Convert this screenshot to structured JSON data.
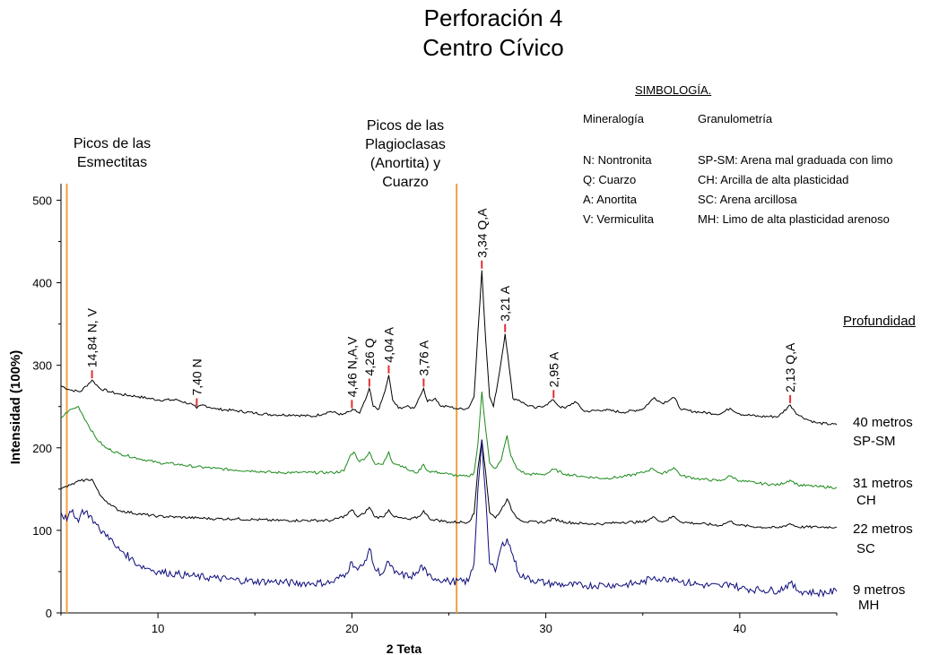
{
  "title_lines": [
    "Perforación 4",
    "Centro Cívico"
  ],
  "chart_data": {
    "type": "line",
    "title": "Perforación 4 Centro Cívico",
    "xlabel": "2 Teta",
    "ylabel": "Intensidad (100%)",
    "xlim": [
      5,
      45
    ],
    "ylim": [
      0,
      520
    ],
    "xticks": [
      10,
      20,
      30,
      40
    ],
    "yticks": [
      0,
      100,
      200,
      300,
      400,
      500
    ],
    "grid": false,
    "series": [
      {
        "name": "40 metros",
        "color": "#000000",
        "points": [
          [
            5,
            275
          ],
          [
            5.5,
            270
          ],
          [
            6,
            268
          ],
          [
            6.6,
            282
          ],
          [
            7,
            272
          ],
          [
            7.5,
            268
          ],
          [
            8,
            265
          ],
          [
            9,
            262
          ],
          [
            10,
            258
          ],
          [
            11,
            258
          ],
          [
            11.8,
            252
          ],
          [
            12,
            248
          ],
          [
            12.3,
            252
          ],
          [
            13,
            247
          ],
          [
            14,
            245
          ],
          [
            15,
            242
          ],
          [
            16,
            240
          ],
          [
            17,
            240
          ],
          [
            18,
            238
          ],
          [
            18.9,
            244
          ],
          [
            19.5,
            240
          ],
          [
            19.9,
            244
          ],
          [
            20.1,
            246
          ],
          [
            20.4,
            242
          ],
          [
            20.7,
            258
          ],
          [
            20.9,
            272
          ],
          [
            21.1,
            250
          ],
          [
            21.4,
            247
          ],
          [
            21.7,
            268
          ],
          [
            21.9,
            288
          ],
          [
            22.1,
            258
          ],
          [
            22.4,
            248
          ],
          [
            22.8,
            250
          ],
          [
            23.2,
            248
          ],
          [
            23.5,
            262
          ],
          [
            23.7,
            272
          ],
          [
            23.9,
            256
          ],
          [
            24.3,
            260
          ],
          [
            24.6,
            250
          ],
          [
            25,
            250
          ],
          [
            25.5,
            247
          ],
          [
            26,
            248
          ],
          [
            26.3,
            262
          ],
          [
            26.5,
            340
          ],
          [
            26.7,
            415
          ],
          [
            26.9,
            330
          ],
          [
            27.1,
            262
          ],
          [
            27.3,
            250
          ],
          [
            27.6,
            290
          ],
          [
            27.9,
            338
          ],
          [
            28.1,
            300
          ],
          [
            28.3,
            260
          ],
          [
            28.6,
            258
          ],
          [
            29,
            252
          ],
          [
            29.5,
            248
          ],
          [
            30,
            252
          ],
          [
            30.4,
            258
          ],
          [
            30.7,
            250
          ],
          [
            31,
            248
          ],
          [
            31.5,
            256
          ],
          [
            32,
            244
          ],
          [
            33,
            246
          ],
          [
            34,
            243
          ],
          [
            35,
            247
          ],
          [
            35.6,
            261
          ],
          [
            36,
            254
          ],
          [
            36.6,
            261
          ],
          [
            37,
            246
          ],
          [
            38,
            243
          ],
          [
            39,
            241
          ],
          [
            39.5,
            248
          ],
          [
            40,
            241
          ],
          [
            41,
            238
          ],
          [
            42,
            238
          ],
          [
            42.6,
            252
          ],
          [
            43,
            240
          ],
          [
            43.5,
            234
          ],
          [
            44,
            230
          ],
          [
            45,
            228
          ]
        ]
      },
      {
        "name": "31 metros",
        "color": "#1a8a1a",
        "points": [
          [
            5,
            236
          ],
          [
            5.4,
            245
          ],
          [
            5.9,
            250
          ],
          [
            6.3,
            232
          ],
          [
            6.8,
            212
          ],
          [
            7.3,
            200
          ],
          [
            8,
            193
          ],
          [
            9,
            187
          ],
          [
            10,
            182
          ],
          [
            11,
            180
          ],
          [
            12,
            177
          ],
          [
            13,
            175
          ],
          [
            14,
            173
          ],
          [
            15,
            172
          ],
          [
            16,
            170
          ],
          [
            17,
            170
          ],
          [
            18,
            170
          ],
          [
            19,
            170
          ],
          [
            19.6,
            172
          ],
          [
            19.9,
            190
          ],
          [
            20.1,
            195
          ],
          [
            20.4,
            183
          ],
          [
            20.7,
            188
          ],
          [
            20.9,
            195
          ],
          [
            21.2,
            180
          ],
          [
            21.6,
            180
          ],
          [
            21.9,
            195
          ],
          [
            22.1,
            182
          ],
          [
            22.6,
            178
          ],
          [
            23,
            172
          ],
          [
            23.4,
            170
          ],
          [
            23.7,
            180
          ],
          [
            23.9,
            172
          ],
          [
            24.5,
            170
          ],
          [
            25,
            168
          ],
          [
            25.5,
            166
          ],
          [
            26,
            165
          ],
          [
            26.3,
            170
          ],
          [
            26.5,
            205
          ],
          [
            26.7,
            268
          ],
          [
            26.9,
            222
          ],
          [
            27.1,
            182
          ],
          [
            27.4,
            175
          ],
          [
            27.7,
            185
          ],
          [
            28,
            215
          ],
          [
            28.2,
            190
          ],
          [
            28.5,
            175
          ],
          [
            29,
            168
          ],
          [
            30,
            168
          ],
          [
            30.4,
            174
          ],
          [
            31,
            168
          ],
          [
            32,
            165
          ],
          [
            33,
            163
          ],
          [
            34,
            165
          ],
          [
            35,
            170
          ],
          [
            35.5,
            175
          ],
          [
            36,
            168
          ],
          [
            36.6,
            176
          ],
          [
            37,
            166
          ],
          [
            38,
            162
          ],
          [
            39,
            160
          ],
          [
            39.5,
            166
          ],
          [
            40,
            160
          ],
          [
            41,
            157
          ],
          [
            42,
            155
          ],
          [
            42.6,
            161
          ],
          [
            43,
            155
          ],
          [
            44,
            153
          ],
          [
            45,
            152
          ]
        ]
      },
      {
        "name": "22 metros",
        "color": "#000000",
        "points": [
          [
            5,
            150
          ],
          [
            5.5,
            155
          ],
          [
            6,
            160
          ],
          [
            6.6,
            162
          ],
          [
            7,
            143
          ],
          [
            7.6,
            130
          ],
          [
            8,
            124
          ],
          [
            9,
            120
          ],
          [
            10,
            117
          ],
          [
            11,
            116
          ],
          [
            12,
            115
          ],
          [
            13,
            114
          ],
          [
            14,
            114
          ],
          [
            15,
            113
          ],
          [
            16,
            112
          ],
          [
            17,
            112
          ],
          [
            18,
            112
          ],
          [
            19,
            112
          ],
          [
            19.7,
            118
          ],
          [
            20,
            125
          ],
          [
            20.3,
            116
          ],
          [
            20.6,
            120
          ],
          [
            20.9,
            128
          ],
          [
            21.2,
            116
          ],
          [
            21.6,
            116
          ],
          [
            21.9,
            125
          ],
          [
            22.2,
            116
          ],
          [
            23,
            113
          ],
          [
            23.5,
            117
          ],
          [
            23.7,
            124
          ],
          [
            24,
            114
          ],
          [
            25,
            110
          ],
          [
            26,
            110
          ],
          [
            26.3,
            120
          ],
          [
            26.5,
            175
          ],
          [
            26.7,
            210
          ],
          [
            26.9,
            170
          ],
          [
            27.1,
            122
          ],
          [
            27.4,
            115
          ],
          [
            27.7,
            125
          ],
          [
            28,
            138
          ],
          [
            28.3,
            122
          ],
          [
            28.6,
            114
          ],
          [
            29,
            110
          ],
          [
            30,
            110
          ],
          [
            30.4,
            114
          ],
          [
            31,
            110
          ],
          [
            32,
            108
          ],
          [
            33,
            108
          ],
          [
            34,
            110
          ],
          [
            35,
            110
          ],
          [
            35.6,
            116
          ],
          [
            36,
            110
          ],
          [
            36.6,
            117
          ],
          [
            37,
            110
          ],
          [
            38,
            108
          ],
          [
            39,
            106
          ],
          [
            39.5,
            111
          ],
          [
            40,
            106
          ],
          [
            41,
            104
          ],
          [
            42,
            103
          ],
          [
            42.6,
            108
          ],
          [
            43,
            104
          ],
          [
            44,
            104
          ],
          [
            45,
            104
          ]
        ]
      },
      {
        "name": "9 metros",
        "color": "#0b0b7a",
        "points": [
          [
            5,
            122
          ],
          [
            5.3,
            112
          ],
          [
            5.6,
            125
          ],
          [
            5.9,
            110
          ],
          [
            6.1,
            125
          ],
          [
            6.5,
            118
          ],
          [
            7,
            100
          ],
          [
            7.4,
            95
          ],
          [
            7.8,
            80
          ],
          [
            8.2,
            74
          ],
          [
            8.6,
            66
          ],
          [
            9,
            58
          ],
          [
            9.5,
            54
          ],
          [
            10,
            50
          ],
          [
            11,
            47
          ],
          [
            12,
            44
          ],
          [
            13,
            42
          ],
          [
            14,
            40
          ],
          [
            15,
            38
          ],
          [
            16,
            38
          ],
          [
            17,
            36
          ],
          [
            18,
            36
          ],
          [
            19,
            37
          ],
          [
            19.7,
            48
          ],
          [
            20,
            62
          ],
          [
            20.3,
            52
          ],
          [
            20.6,
            58
          ],
          [
            20.9,
            78
          ],
          [
            21.2,
            52
          ],
          [
            21.6,
            48
          ],
          [
            21.9,
            62
          ],
          [
            22.2,
            48
          ],
          [
            23,
            44
          ],
          [
            23.4,
            48
          ],
          [
            23.6,
            58
          ],
          [
            23.9,
            45
          ],
          [
            25,
            38
          ],
          [
            26,
            38
          ],
          [
            26.3,
            60
          ],
          [
            26.5,
            150
          ],
          [
            26.7,
            210
          ],
          [
            26.9,
            140
          ],
          [
            27.1,
            60
          ],
          [
            27.4,
            50
          ],
          [
            27.7,
            80
          ],
          [
            28,
            90
          ],
          [
            28.3,
            70
          ],
          [
            28.6,
            48
          ],
          [
            29,
            42
          ],
          [
            30,
            36
          ],
          [
            31,
            34
          ],
          [
            32,
            33
          ],
          [
            33,
            34
          ],
          [
            34,
            34
          ],
          [
            35,
            37
          ],
          [
            35.6,
            44
          ],
          [
            36,
            40
          ],
          [
            36.6,
            43
          ],
          [
            37,
            38
          ],
          [
            38,
            34
          ],
          [
            39,
            32
          ],
          [
            39.5,
            36
          ],
          [
            40,
            30
          ],
          [
            41,
            28
          ],
          [
            42,
            27
          ],
          [
            42.6,
            36
          ],
          [
            43,
            27
          ],
          [
            44,
            24
          ],
          [
            45,
            26
          ]
        ]
      }
    ],
    "peaks": [
      {
        "label": "14,84 N, V",
        "x": 6.6,
        "y": 282
      },
      {
        "label": "7,40 N",
        "x": 12.0,
        "y": 248
      },
      {
        "label": "4,46  N,A,V",
        "x": 20.0,
        "y": 246
      },
      {
        "label": "4,26  Q",
        "x": 20.9,
        "y": 272
      },
      {
        "label": "4,04  A",
        "x": 21.9,
        "y": 288
      },
      {
        "label": "3,76  A",
        "x": 23.7,
        "y": 272
      },
      {
        "label": "3,34  Q,A",
        "x": 26.7,
        "y": 415
      },
      {
        "label": "3,21  A",
        "x": 27.9,
        "y": 338
      },
      {
        "label": "2,95  A",
        "x": 30.4,
        "y": 258
      },
      {
        "label": "2,13  Q,A",
        "x": 42.6,
        "y": 252
      }
    ],
    "reference_lines": [
      {
        "x": 5.3,
        "color": "#f0a040"
      },
      {
        "x": 25.4,
        "color": "#f0a040"
      }
    ]
  },
  "annotations": {
    "esmectitas": [
      "Picos de las",
      "Esmectitas"
    ],
    "plagioclasas": [
      "Picos de las",
      "Plagioclasas",
      "(Anortita) y",
      "Cuarzo"
    ]
  },
  "legend": {
    "title": "SIMBOLOGÍA.",
    "col1_header": "Mineralogía",
    "col2_header": "Granulometría",
    "mineralogia": [
      "N: Nontronita",
      "Q: Cuarzo",
      "A: Anortita",
      "V: Vermiculita"
    ],
    "granulometria": [
      "SP-SM: Arena mal graduada con limo",
      "CH: Arcilla de alta plasticidad",
      "SC: Arena arcillosa",
      "MH: Limo de alta plasticidad arenoso"
    ]
  },
  "profundidad_label": "Profundidad",
  "depth_labels": [
    {
      "depth": "40 metros",
      "soil": "SP-SM"
    },
    {
      "depth": "31 metros",
      "soil": "CH"
    },
    {
      "depth": "22 metros",
      "soil": "SC"
    },
    {
      "depth": "9 metros",
      "soil": "MH"
    }
  ]
}
